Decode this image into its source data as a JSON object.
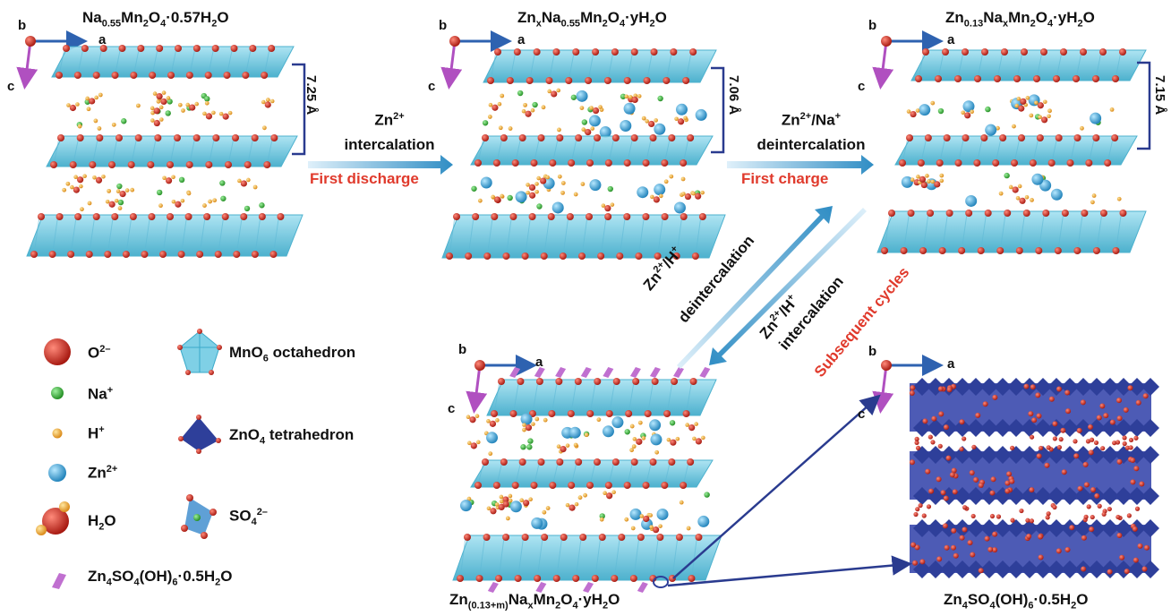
{
  "panels": {
    "p1": {
      "title": {
        "main_a": "Na",
        "sub_a": "0.55",
        "main_b": "Mn",
        "sub_b": "2",
        "main_c": "O",
        "sub_c": "4",
        "main_d": "·0.57H",
        "sub_d": "2",
        "main_e": "O"
      },
      "spacing": "7.25 Å"
    },
    "p2": {
      "title": {
        "main_a": "Zn",
        "sub_a": "x",
        "main_b": "Na",
        "sub_b": "0.55",
        "main_c": "Mn",
        "sub_c": "2",
        "main_d": "O",
        "sub_d": "4",
        "main_e": "·yH",
        "sub_e": "2",
        "main_f": "O"
      },
      "spacing": "7.06 Å"
    },
    "p3": {
      "title": {
        "main_a": "Zn",
        "sub_a": "0.13",
        "main_b": "Na",
        "sub_b": "x",
        "main_c": "Mn",
        "sub_c": "2",
        "main_d": "O",
        "sub_d": "4",
        "main_e": "·yH",
        "sub_e": "2",
        "main_f": "O"
      },
      "spacing": "7.15 Å"
    },
    "p4": {
      "title": {
        "main_a": "Zn",
        "sub_a": "(0.13+m)",
        "main_b": "Na",
        "sub_b": "x",
        "main_c": "Mn",
        "sub_c": "2",
        "main_d": "O",
        "sub_d": "4",
        "main_e": "·yH",
        "sub_e": "2",
        "main_f": "O"
      }
    },
    "p5": {
      "title": {
        "main_a": "Zn",
        "sub_a": "4",
        "main_b": "SO",
        "sub_b": "4",
        "main_c": "(OH)",
        "sub_c": "6",
        "main_d": "·0.5H",
        "sub_d": "2",
        "main_e": "O"
      }
    }
  },
  "axes": {
    "a": "a",
    "b": "b",
    "c": "c"
  },
  "arrows": {
    "step1": {
      "line1_main": "Zn",
      "line1_sup": "2+",
      "line2": "intercalation",
      "caption": "First discharge"
    },
    "step2": {
      "line1_main": "Zn",
      "line1_sup": "2+",
      "line1_rest": "/Na",
      "line1_sup2": "+",
      "line2": "deintercalation",
      "caption": "First charge"
    },
    "up": {
      "line1_main": "Zn",
      "line1_sup": "2+",
      "line1_rest": "/H",
      "line1_sup2": "+",
      "line2": "deintercalation"
    },
    "down": {
      "line1_main": "Zn",
      "line1_sup": "2+",
      "line1_rest": "/H",
      "line1_sup2": "+",
      "line2": "intercalation",
      "caption": "Subsequent cycles"
    }
  },
  "legend": {
    "o2": {
      "main": "O",
      "sup": "2–"
    },
    "na": {
      "main": "Na",
      "sup": "+"
    },
    "h": {
      "main": "H",
      "sup": "+"
    },
    "zn": {
      "main": "Zn",
      "sup": "2+"
    },
    "h2o": {
      "main": "H",
      "sub": "2",
      "rest": "O"
    },
    "mno6": {
      "main": "MnO",
      "sub": "6",
      "rest": " octahedron"
    },
    "zno4": {
      "main": "ZnO",
      "sub": "4",
      "rest": " tetrahedron"
    },
    "so4": {
      "main": "SO",
      "sub": "4",
      "sup": "2–"
    },
    "zhs": {
      "main_a": "Zn",
      "sub_a": "4",
      "main_b": "SO",
      "sub_b": "4",
      "main_c": "(OH)",
      "sub_c": "6",
      "main_d": "·0.5H",
      "sub_d": "2",
      "main_e": "O"
    }
  },
  "colors": {
    "mn_layer": "#7fd0e6",
    "mn_layer_dark": "#3aa9c9",
    "oxygen": "#c8281e",
    "sodium": "#3cb43c",
    "hydrogen": "#f0a830",
    "zinc": "#3aa8dc",
    "zhs_flake": "#c070d0",
    "zno4": "#2e3f9a",
    "arrow": "#3a95c8",
    "axis_blue": "#2e62b0",
    "axis_purple": "#b050c0",
    "caption_red": "#e03a2c",
    "bracket": "#2a3b8f"
  }
}
